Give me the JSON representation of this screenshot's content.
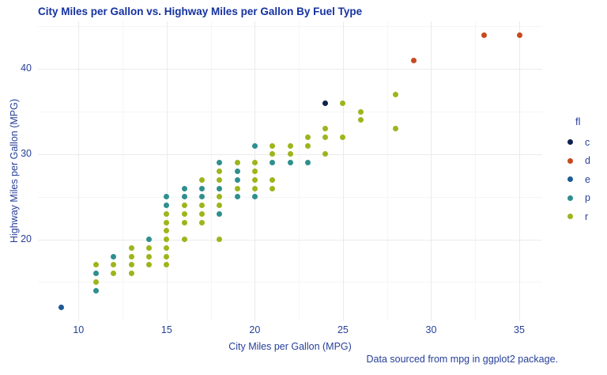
{
  "title": "City Miles per Gallon vs. Highway Miles per Gallon By Fuel Type",
  "caption": "Data sourced from mpg in ggplot2 package.",
  "text_colors": {
    "title": "#1532a0",
    "body": "#27409a"
  },
  "chart_data": {
    "type": "scatter",
    "title": "City Miles per Gallon vs. Highway Miles per Gallon By Fuel Type",
    "xlabel": "City Miles per Gallon (MPG)",
    "ylabel": "Highway Miles per Gallon (MPG)",
    "xlim": [
      7.7,
      36.3
    ],
    "ylim": [
      10.4,
      45.6
    ],
    "x_major_ticks": [
      10,
      15,
      20,
      25,
      30,
      35
    ],
    "x_minor_ticks": [
      12.5,
      17.5,
      22.5,
      27.5,
      32.5
    ],
    "y_major_ticks": [
      20,
      30,
      40
    ],
    "y_minor_ticks": [
      15,
      25,
      35,
      45
    ],
    "grid": true,
    "legend_title": "fl",
    "legend_position": "right",
    "series": [
      {
        "name": "c",
        "color": "#0e2150",
        "points": [
          [
            24,
            36
          ]
        ]
      },
      {
        "name": "d",
        "color": "#c74a1d",
        "points": [
          [
            29,
            41
          ],
          [
            33,
            44
          ],
          [
            35,
            44
          ]
        ]
      },
      {
        "name": "e",
        "color": "#1d5a96",
        "points": [
          [
            9,
            12
          ]
        ]
      },
      {
        "name": "p",
        "color": "#2e8f8e",
        "points": [
          [
            11,
            16
          ],
          [
            11,
            14
          ],
          [
            12,
            18
          ],
          [
            14,
            20
          ],
          [
            15,
            25
          ],
          [
            15,
            24
          ],
          [
            16,
            26
          ],
          [
            16,
            25
          ],
          [
            17,
            26
          ],
          [
            17,
            25
          ],
          [
            18,
            29
          ],
          [
            18,
            26
          ],
          [
            18,
            23
          ],
          [
            19,
            28
          ],
          [
            19,
            27
          ],
          [
            19,
            25
          ],
          [
            20,
            31
          ],
          [
            20,
            25
          ],
          [
            21,
            29
          ],
          [
            22,
            29
          ],
          [
            23,
            29
          ]
        ]
      },
      {
        "name": "r",
        "color": "#9fb41c",
        "points": [
          [
            11,
            17
          ],
          [
            11,
            15
          ],
          [
            12,
            17
          ],
          [
            12,
            16
          ],
          [
            13,
            19
          ],
          [
            13,
            18
          ],
          [
            13,
            17
          ],
          [
            13,
            16
          ],
          [
            14,
            19
          ],
          [
            14,
            18
          ],
          [
            14,
            17
          ],
          [
            15,
            23
          ],
          [
            15,
            22
          ],
          [
            15,
            21
          ],
          [
            15,
            20
          ],
          [
            15,
            19
          ],
          [
            15,
            18
          ],
          [
            15,
            17
          ],
          [
            16,
            24
          ],
          [
            16,
            23
          ],
          [
            16,
            22
          ],
          [
            16,
            20
          ],
          [
            17,
            27
          ],
          [
            17,
            24
          ],
          [
            17,
            23
          ],
          [
            17,
            22
          ],
          [
            18,
            28
          ],
          [
            18,
            27
          ],
          [
            18,
            25
          ],
          [
            18,
            24
          ],
          [
            18,
            20
          ],
          [
            19,
            29
          ],
          [
            19,
            26
          ],
          [
            20,
            29
          ],
          [
            20,
            28
          ],
          [
            20,
            27
          ],
          [
            20,
            26
          ],
          [
            21,
            31
          ],
          [
            21,
            30
          ],
          [
            21,
            27
          ],
          [
            21,
            26
          ],
          [
            22,
            31
          ],
          [
            22,
            30
          ],
          [
            23,
            32
          ],
          [
            23,
            31
          ],
          [
            24,
            33
          ],
          [
            24,
            32
          ],
          [
            24,
            30
          ],
          [
            25,
            36
          ],
          [
            25,
            32
          ],
          [
            26,
            35
          ],
          [
            26,
            34
          ],
          [
            28,
            37
          ],
          [
            28,
            33
          ]
        ]
      }
    ]
  }
}
